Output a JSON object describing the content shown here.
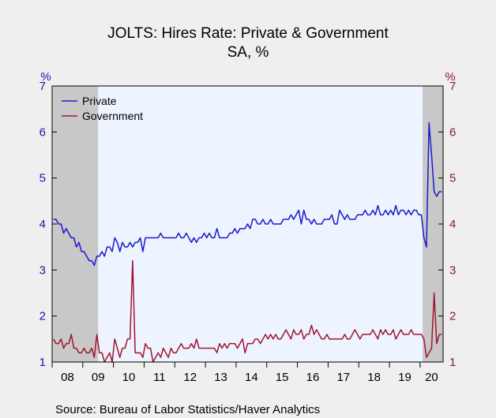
{
  "chart_data": {
    "type": "line",
    "title": "JOLTS: Hires Rate: Private & Government",
    "subtitle": "SA, %",
    "ylabel_left": "%",
    "ylabel_right": "%",
    "ylim": [
      1,
      7
    ],
    "y_ticks": [
      "1",
      "2",
      "3",
      "4",
      "5",
      "6",
      "7"
    ],
    "x_start": "2008-01",
    "x_end": "2020-09",
    "x_tick_labels": [
      "08",
      "09",
      "10",
      "11",
      "12",
      "13",
      "14",
      "15",
      "16",
      "17",
      "18",
      "19",
      "20"
    ],
    "recessions": [
      {
        "start": "2008-01",
        "end": "2009-06"
      },
      {
        "start": "2020-02",
        "end": "2020-09"
      }
    ],
    "source": "Source:  Bureau of Labor Statistics/Haver Analytics",
    "colors": {
      "private": "#1a1acc",
      "government": "#a0162e",
      "plot_bg": "#eef4ff",
      "recession": "#c8c8c8"
    },
    "series": [
      {
        "name": "Private",
        "values": [
          4.1,
          4.1,
          4.0,
          4.0,
          3.8,
          3.9,
          3.8,
          3.7,
          3.7,
          3.5,
          3.6,
          3.4,
          3.4,
          3.3,
          3.2,
          3.2,
          3.1,
          3.3,
          3.3,
          3.4,
          3.3,
          3.5,
          3.5,
          3.4,
          3.7,
          3.6,
          3.4,
          3.6,
          3.5,
          3.5,
          3.6,
          3.5,
          3.6,
          3.6,
          3.7,
          3.4,
          3.7,
          3.7,
          3.7,
          3.7,
          3.7,
          3.7,
          3.8,
          3.7,
          3.7,
          3.7,
          3.7,
          3.7,
          3.7,
          3.8,
          3.7,
          3.7,
          3.8,
          3.7,
          3.6,
          3.7,
          3.6,
          3.7,
          3.7,
          3.8,
          3.7,
          3.8,
          3.7,
          3.7,
          3.9,
          3.7,
          3.7,
          3.7,
          3.7,
          3.8,
          3.8,
          3.9,
          3.8,
          3.9,
          3.9,
          3.9,
          4.0,
          3.9,
          4.1,
          4.1,
          4.0,
          4.0,
          4.1,
          4.0,
          4.0,
          4.1,
          4.0,
          4.0,
          4.0,
          4.0,
          4.1,
          4.1,
          4.1,
          4.2,
          4.1,
          4.2,
          4.3,
          4.0,
          4.3,
          4.1,
          4.1,
          4.0,
          4.1,
          4.0,
          4.0,
          4.0,
          4.1,
          4.1,
          4.1,
          4.2,
          4.0,
          4.0,
          4.3,
          4.2,
          4.1,
          4.2,
          4.1,
          4.1,
          4.1,
          4.2,
          4.2,
          4.2,
          4.3,
          4.2,
          4.2,
          4.3,
          4.2,
          4.4,
          4.2,
          4.2,
          4.3,
          4.2,
          4.3,
          4.2,
          4.4,
          4.2,
          4.3,
          4.3,
          4.2,
          4.3,
          4.2,
          4.3,
          4.3,
          4.2,
          4.2,
          3.7,
          3.5,
          6.2,
          5.5,
          4.7,
          4.6,
          4.7,
          4.7
        ]
      },
      {
        "name": "Government",
        "values": [
          1.5,
          1.4,
          1.4,
          1.5,
          1.3,
          1.4,
          1.4,
          1.6,
          1.3,
          1.3,
          1.2,
          1.2,
          1.3,
          1.2,
          1.2,
          1.3,
          1.1,
          1.6,
          1.2,
          1.2,
          1.0,
          1.1,
          1.2,
          1.0,
          1.5,
          1.3,
          1.1,
          1.3,
          1.3,
          1.5,
          1.5,
          3.2,
          1.2,
          1.2,
          1.2,
          1.1,
          1.4,
          1.3,
          1.3,
          1.0,
          1.1,
          1.2,
          1.1,
          1.3,
          1.2,
          1.1,
          1.3,
          1.2,
          1.2,
          1.3,
          1.4,
          1.3,
          1.3,
          1.3,
          1.4,
          1.3,
          1.5,
          1.3,
          1.3,
          1.3,
          1.3,
          1.3,
          1.3,
          1.3,
          1.2,
          1.4,
          1.3,
          1.4,
          1.3,
          1.4,
          1.4,
          1.4,
          1.3,
          1.4,
          1.5,
          1.2,
          1.4,
          1.4,
          1.4,
          1.5,
          1.5,
          1.4,
          1.5,
          1.6,
          1.5,
          1.6,
          1.5,
          1.6,
          1.5,
          1.5,
          1.6,
          1.7,
          1.6,
          1.5,
          1.7,
          1.6,
          1.6,
          1.7,
          1.5,
          1.6,
          1.6,
          1.8,
          1.6,
          1.7,
          1.6,
          1.5,
          1.5,
          1.6,
          1.5,
          1.5,
          1.5,
          1.5,
          1.5,
          1.5,
          1.6,
          1.5,
          1.5,
          1.6,
          1.7,
          1.6,
          1.5,
          1.6,
          1.6,
          1.6,
          1.6,
          1.7,
          1.6,
          1.5,
          1.7,
          1.6,
          1.7,
          1.6,
          1.6,
          1.7,
          1.5,
          1.6,
          1.7,
          1.6,
          1.6,
          1.6,
          1.7,
          1.6,
          1.6,
          1.6,
          1.6,
          1.5,
          1.1,
          1.2,
          1.3,
          2.5,
          1.4,
          1.6,
          1.6
        ]
      }
    ]
  }
}
